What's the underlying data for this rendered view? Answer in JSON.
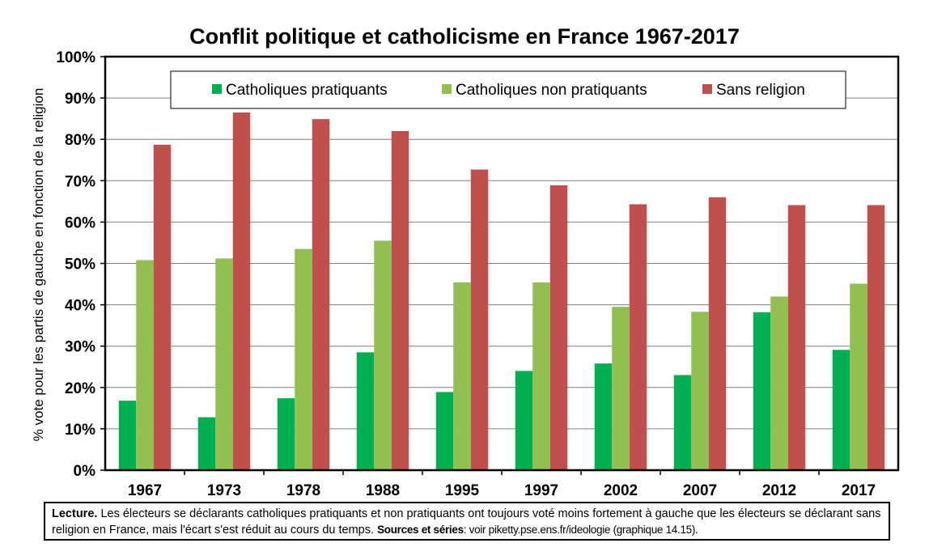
{
  "chart_data": {
    "type": "bar",
    "title": "Conflit politique et catholicisme en France 1967-2017",
    "ylabel": "% vote pour les partis de gauche en fonction de la religion",
    "xlabel": "",
    "ylim": [
      0,
      100
    ],
    "yticks": [
      "0%",
      "10%",
      "20%",
      "30%",
      "40%",
      "50%",
      "60%",
      "70%",
      "80%",
      "90%",
      "100%"
    ],
    "grid": true,
    "legend_position": "top",
    "categories": [
      "1967",
      "1973",
      "1978",
      "1988",
      "1995",
      "1997",
      "2002",
      "2007",
      "2012",
      "2017"
    ],
    "series": [
      {
        "name": "Catholiques pratiquants",
        "color": "#00b050",
        "values": [
          16.8,
          12.8,
          17.4,
          28.5,
          18.9,
          24.0,
          25.8,
          23.0,
          38.2,
          29.1
        ]
      },
      {
        "name": "Catholiques non pratiquants",
        "color": "#92c050",
        "values": [
          50.8,
          51.2,
          53.5,
          55.5,
          45.4,
          45.4,
          39.5,
          38.3,
          42.0,
          45.1
        ]
      },
      {
        "name": "Sans religion",
        "color": "#c0504d",
        "values": [
          78.7,
          86.5,
          84.9,
          82.0,
          72.7,
          68.9,
          64.3,
          66.0,
          64.1,
          64.1
        ]
      }
    ]
  },
  "note": {
    "lecture_label": "Lecture.",
    "lecture_text": " Les électeurs se déclarants catholiques pratiquants et non pratiquants ont toujours voté moins fortement à gauche que les électeurs se déclarant sans religion en France, mais l'écart s'est réduit au cours du temps. ",
    "sources_label": "Sources et séries",
    "sources_text": ": voir piketty.pse.ens.fr/ideologie (graphique 14.15)."
  }
}
